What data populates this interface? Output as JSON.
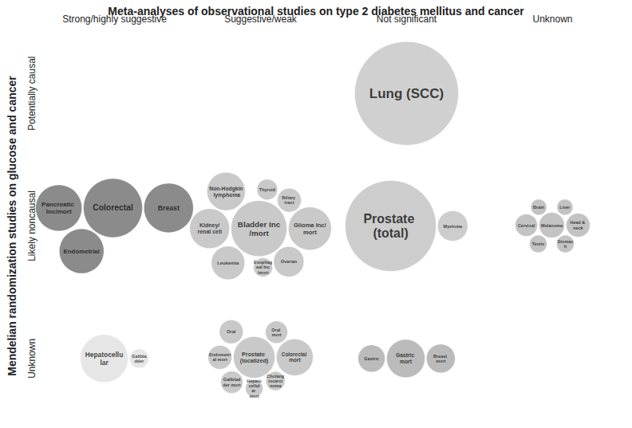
{
  "chart_data": {
    "type": "bubble",
    "title": "Meta-analyses of observational studies on type 2 diabetes mellitus and cancer",
    "y_axis_label": "Mendelian randomization studies on glucose and cancer",
    "columns": [
      "Strong/highly suggestive",
      "Suggestive/weak",
      "Not significant",
      "Unknown"
    ],
    "rows": [
      "Potentially causal",
      "Likely noncausal",
      "Unknown"
    ],
    "groups": [
      {
        "column": "Not significant",
        "row": "Potentially causal",
        "color": "#c4c4c4",
        "bubbles": [
          {
            "label": "Lung (SCC)",
            "size": 130
          }
        ]
      },
      {
        "column": "Strong/highly suggestive",
        "row": "Likely noncausal",
        "color": "#6e6e6e",
        "bubbles": [
          {
            "label": "Colorectal",
            "size": 74
          },
          {
            "label": "Breast",
            "size": 62
          },
          {
            "label": "Pancreatic Inc/mort",
            "size": 58
          },
          {
            "label": "Endometrial",
            "size": 56
          }
        ]
      },
      {
        "column": "Suggestive/weak",
        "row": "Likely noncausal",
        "color": "#bbbbbb",
        "bubbles": [
          {
            "label": "Bladder Inc/mort",
            "size": 70
          },
          {
            "label": "Glioma Inc/mort",
            "size": 54
          },
          {
            "label": "Kidney/renal cell",
            "size": 50
          },
          {
            "label": "Non-Hodgkin lymphoma",
            "size": 48
          },
          {
            "label": "Leukemia",
            "size": 42
          },
          {
            "label": "Ovarian",
            "size": 38
          },
          {
            "label": "Biliary tract",
            "size": 30
          },
          {
            "label": "Thyroid",
            "size": 26
          },
          {
            "label": "Esophageal Inc/mort",
            "size": 24
          }
        ]
      },
      {
        "column": "Not significant",
        "row": "Likely noncausal",
        "color": "#c0c0c0",
        "bubbles": [
          {
            "label": "Prostate (total)",
            "size": 114
          },
          {
            "label": "Myeloma",
            "size": 38
          }
        ]
      },
      {
        "column": "Unknown",
        "row": "Likely noncausal",
        "color": "#b4b4b4",
        "bubbles": [
          {
            "label": "Melanoma",
            "size": 32
          },
          {
            "label": "Head & neck",
            "size": 30
          },
          {
            "label": "Cervical",
            "size": 28
          },
          {
            "label": "Stomach",
            "size": 22
          },
          {
            "label": "Testis",
            "size": 22
          },
          {
            "label": "Brain",
            "size": 20
          },
          {
            "label": "Liver",
            "size": 20
          }
        ]
      },
      {
        "column": "Strong/highly suggestive",
        "row": "Unknown",
        "color": "#e0e0e0",
        "bubbles": [
          {
            "label": "Hepatocellular",
            "size": 60
          },
          {
            "label": "Gallbladder",
            "size": 24
          }
        ]
      },
      {
        "column": "Suggestive/weak",
        "row": "Unknown",
        "color": "#bbbbbb",
        "bubbles": [
          {
            "label": "Prostate (localized)",
            "size": 52
          },
          {
            "label": "Colorectal mort",
            "size": 46
          },
          {
            "label": "Endometrial mort",
            "size": 30
          },
          {
            "label": "Oral",
            "size": 30
          },
          {
            "label": "Gallbladder mort",
            "size": 28
          },
          {
            "label": "Oral mort",
            "size": 28
          },
          {
            "label": "Cholangiocarcinoma",
            "size": 24
          },
          {
            "label": "Hepatocellular mort",
            "size": 22
          }
        ]
      },
      {
        "column": "Not significant",
        "row": "Unknown",
        "color": "#aaaaaa",
        "bubbles": [
          {
            "label": "Gastric mort",
            "size": 48
          },
          {
            "label": "Breast mort",
            "size": 36
          },
          {
            "label": "Gastric",
            "size": 34
          }
        ]
      }
    ]
  }
}
